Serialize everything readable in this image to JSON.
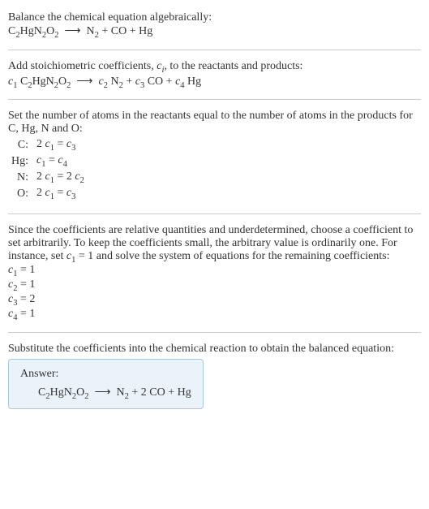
{
  "intro": {
    "line1": "Balance the chemical equation algebraically:",
    "eq": "C<sub>2</sub>HgN<sub>2</sub>O<sub>2</sub>&nbsp;&nbsp;⟶&nbsp;&nbsp;N<sub>2</sub> + CO + Hg"
  },
  "stoich": {
    "line1": "Add stoichiometric coefficients, <span class=\"it\">c<sub>i</sub></span>, to the reactants and products:",
    "eq": "<span class=\"it\">c</span><sub>1</sub> C<sub>2</sub>HgN<sub>2</sub>O<sub>2</sub>&nbsp;&nbsp;⟶&nbsp;&nbsp;<span class=\"it\">c</span><sub>2</sub> N<sub>2</sub> + <span class=\"it\">c</span><sub>3</sub> CO + <span class=\"it\">c</span><sub>4</sub> Hg"
  },
  "atoms": {
    "line1": "Set the number of atoms in the reactants equal to the number of atoms in the products for C, Hg, N and O:",
    "rows": [
      {
        "el": "C:",
        "eq": "2 <span class=\"it\">c</span><sub>1</sub> = <span class=\"it\">c</span><sub>3</sub>"
      },
      {
        "el": "Hg:",
        "eq": "<span class=\"it\">c</span><sub>1</sub> = <span class=\"it\">c</span><sub>4</sub>"
      },
      {
        "el": "N:",
        "eq": "2 <span class=\"it\">c</span><sub>1</sub> = 2 <span class=\"it\">c</span><sub>2</sub>"
      },
      {
        "el": "O:",
        "eq": "2 <span class=\"it\">c</span><sub>1</sub> = <span class=\"it\">c</span><sub>3</sub>"
      }
    ]
  },
  "solve": {
    "para": "Since the coefficients are relative quantities and underdetermined, choose a coefficient to set arbitrarily. To keep the coefficients small, the arbitrary value is ordinarily one. For instance, set <span class=\"it\">c</span><sub>1</sub> = 1 and solve the system of equations for the remaining coefficients:",
    "lines": [
      "<span class=\"it\">c</span><sub>1</sub> = 1",
      "<span class=\"it\">c</span><sub>2</sub> = 1",
      "<span class=\"it\">c</span><sub>3</sub> = 2",
      "<span class=\"it\">c</span><sub>4</sub> = 1"
    ]
  },
  "subst": {
    "line1": "Substitute the coefficients into the chemical reaction to obtain the balanced equation:"
  },
  "answer": {
    "label": "Answer:",
    "eq": "C<sub>2</sub>HgN<sub>2</sub>O<sub>2</sub>&nbsp;&nbsp;⟶&nbsp;&nbsp;N<sub>2</sub> + 2 CO + Hg"
  }
}
